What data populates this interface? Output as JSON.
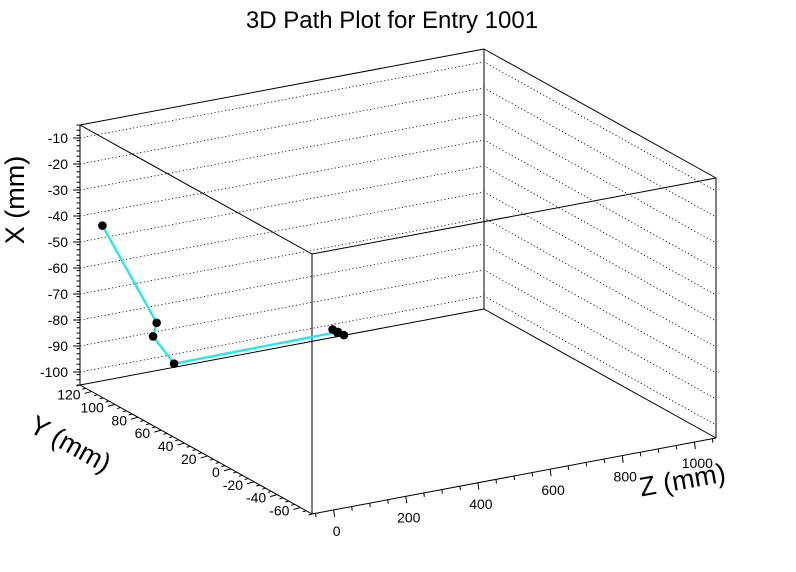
{
  "chart_data": {
    "type": "scatter",
    "subtype": "3d-path",
    "title": "3D Path Plot for Entry 1001",
    "xlabel": "Z (mm)",
    "ylabel": "Y (mm)",
    "zlabel": "X (mm)",
    "grid": "dotted lines on back walls",
    "axes": {
      "z": {
        "label": "Z (mm)",
        "range": [
          -60,
          1060
        ],
        "ticks": [
          0,
          200,
          400,
          600,
          800,
          1000
        ]
      },
      "y": {
        "label": "Y (mm)",
        "range": [
          -70,
          130
        ],
        "ticks": [
          -60,
          -40,
          -20,
          0,
          20,
          40,
          60,
          80,
          100,
          120
        ]
      },
      "x": {
        "label": "X (mm)",
        "range": [
          -105,
          -5
        ],
        "ticks": [
          -10,
          -20,
          -30,
          -40,
          -50,
          -60,
          -70,
          -80,
          -90,
          -100
        ]
      }
    },
    "colors": {
      "path": "#29e6e6",
      "points": "#000000",
      "frame": "#000000"
    },
    "points": [
      {
        "z": -30,
        "y": 120,
        "x": -42
      },
      {
        "z": 40,
        "y": 95,
        "x": -75
      },
      {
        "z": 30,
        "y": 95,
        "x": -80
      },
      {
        "z": 40,
        "y": 80,
        "x": -87
      },
      {
        "z": 430,
        "y": 60,
        "x": -80
      },
      {
        "z": 435,
        "y": 62,
        "x": -81
      },
      {
        "z": 440,
        "y": 58,
        "x": -81
      },
      {
        "z": 428,
        "y": 64,
        "x": -80
      }
    ]
  }
}
